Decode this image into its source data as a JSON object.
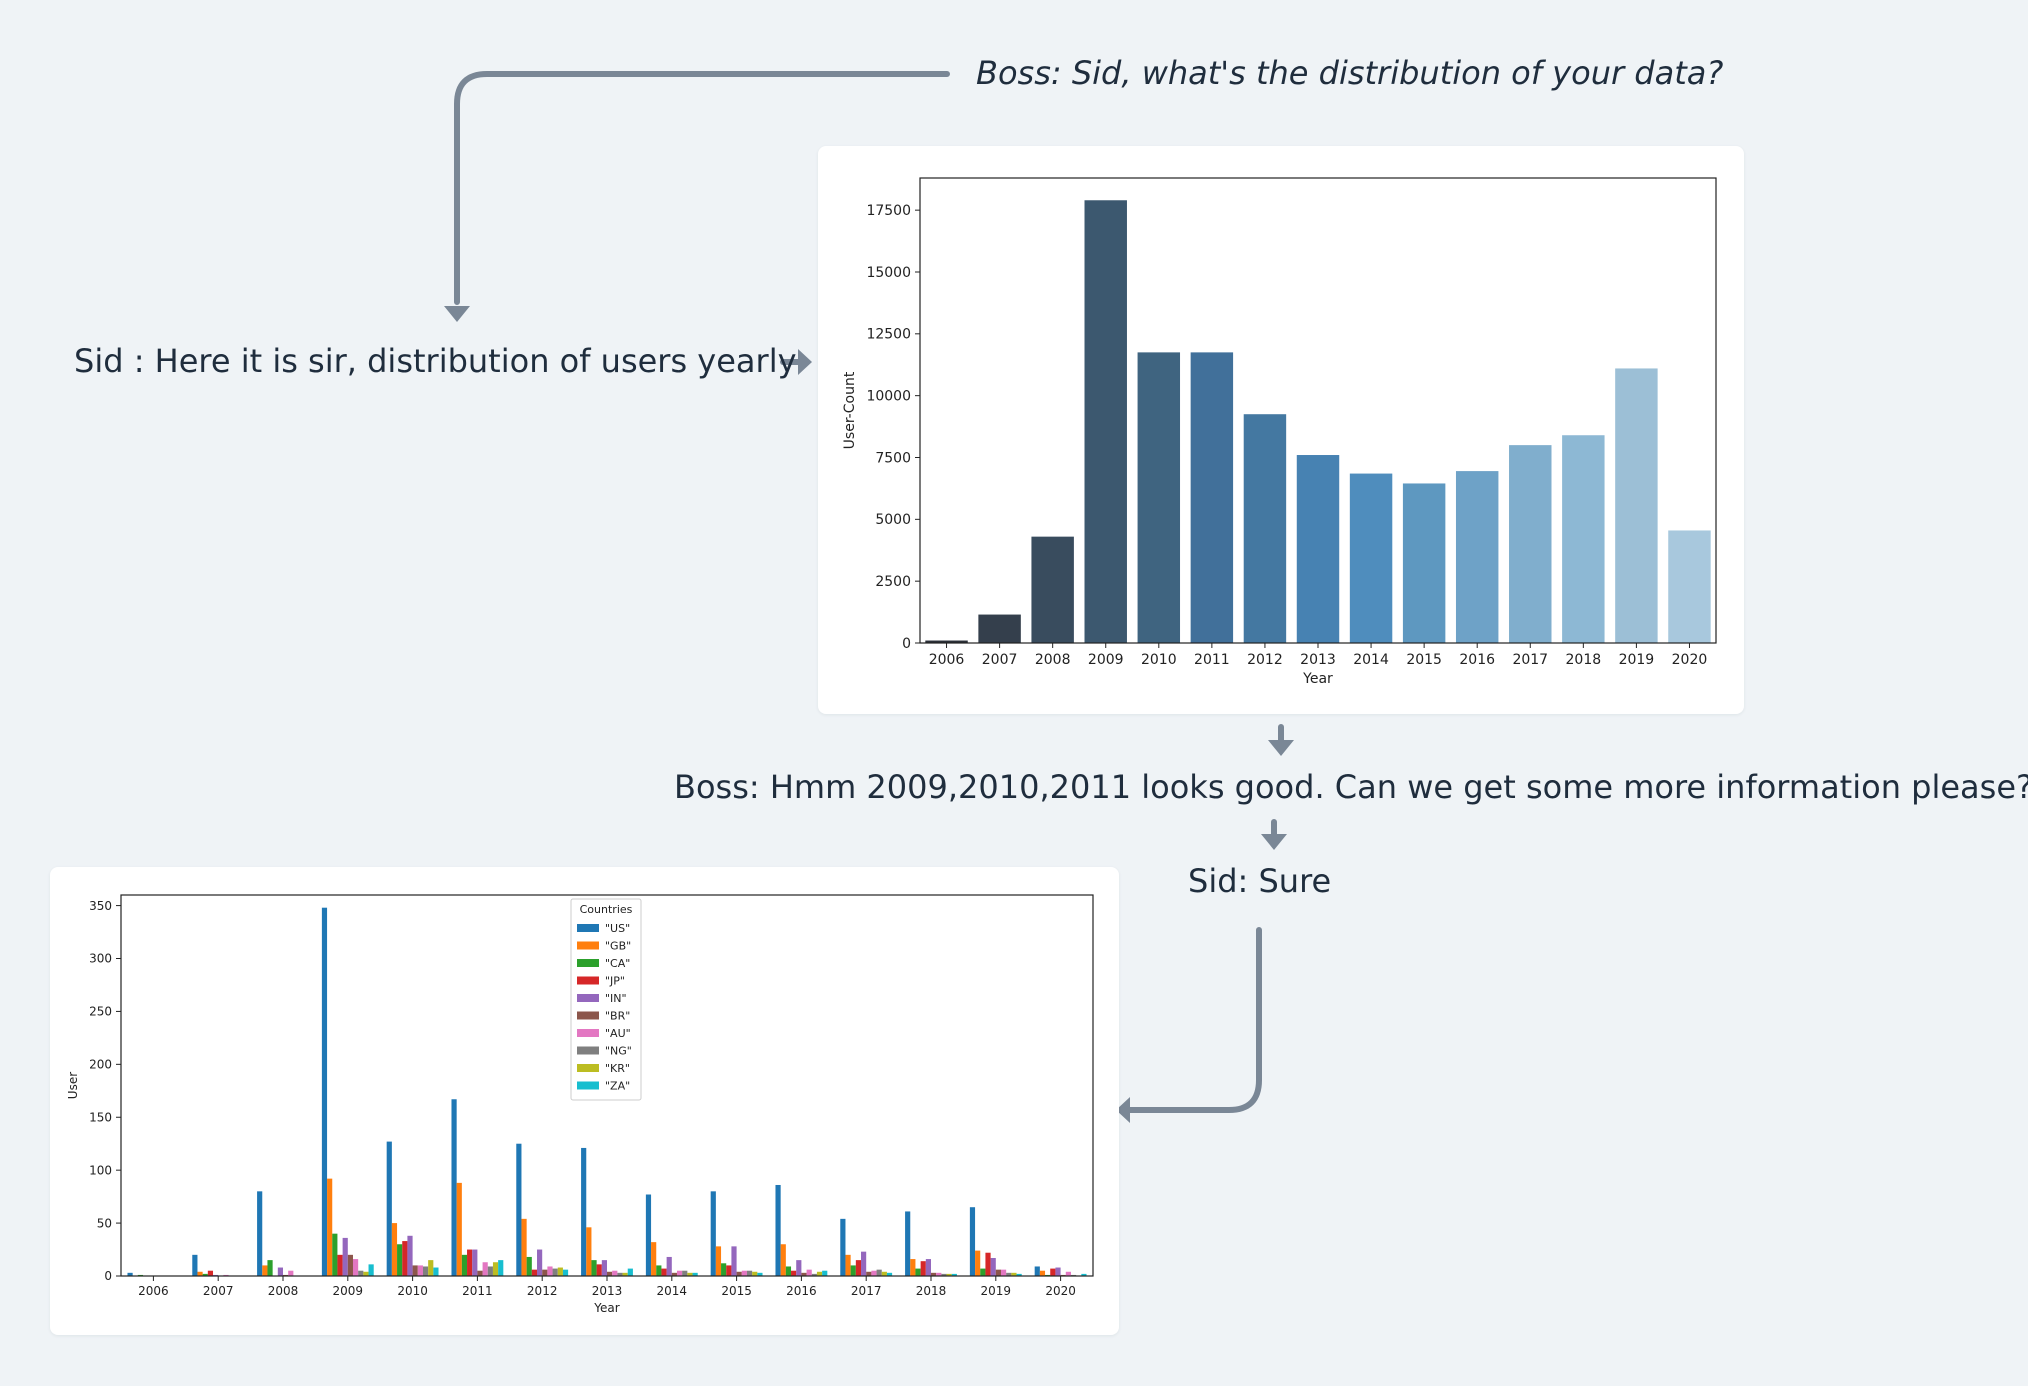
{
  "messages": {
    "boss_question": "Boss: Sid, what's the distribution of your data?",
    "sid_answer": "Sid : Here it is sir, distribution of users yearly",
    "boss_followup": "Boss: Hmm 2009,2010,2011 looks good. Can we get some more information please?",
    "sid_sure": "Sid: Sure"
  },
  "colors": {
    "background": "#eff3f6",
    "connector": "#7a8796",
    "text": "#1f2d3d"
  },
  "chart_data": [
    {
      "type": "bar",
      "xlabel": "Year",
      "ylabel": "User-Count",
      "ylim": [
        0,
        18800
      ],
      "yticks": [
        0,
        2500,
        5000,
        7500,
        10000,
        12500,
        15000,
        17500
      ],
      "categories": [
        "2006",
        "2007",
        "2008",
        "2009",
        "2010",
        "2011",
        "2012",
        "2013",
        "2014",
        "2015",
        "2016",
        "2017",
        "2018",
        "2019",
        "2020"
      ],
      "values": [
        100,
        1150,
        4300,
        17900,
        11750,
        11750,
        9250,
        7600,
        6850,
        6450,
        6950,
        8000,
        8400,
        11100,
        4550
      ],
      "colors": [
        "#2b3038",
        "#343f4c",
        "#394c5e",
        "#3c586f",
        "#3f6480",
        "#41709a",
        "#4478a1",
        "#4782b2",
        "#4f8dbd",
        "#5e98c0",
        "#6ea2c7",
        "#80aecd",
        "#8db8d4",
        "#9cbfd6",
        "#a8c8dd"
      ],
      "grid": false
    },
    {
      "type": "bar",
      "xlabel": "Year",
      "ylabel": "User",
      "ylim": [
        0,
        360
      ],
      "yticks": [
        0,
        50,
        100,
        150,
        200,
        250,
        300,
        350
      ],
      "legend": {
        "title": "Countries",
        "position": "top-center"
      },
      "grid": false,
      "categories": [
        "2006",
        "2007",
        "2008",
        "2009",
        "2010",
        "2011",
        "2012",
        "2013",
        "2014",
        "2015",
        "2016",
        "2017",
        "2018",
        "2019",
        "2020"
      ],
      "series": [
        {
          "name": "\"US\"",
          "color": "#1f77b4",
          "values": [
            3,
            20,
            80,
            348,
            127,
            167,
            125,
            121,
            77,
            80,
            86,
            54,
            61,
            65,
            9
          ]
        },
        {
          "name": "\"GB\"",
          "color": "#ff7f0e",
          "values": [
            0,
            4,
            10,
            92,
            50,
            88,
            54,
            46,
            32,
            28,
            30,
            20,
            16,
            24,
            5
          ]
        },
        {
          "name": "\"CA\"",
          "color": "#2ca02c",
          "values": [
            1,
            2,
            15,
            40,
            30,
            20,
            18,
            15,
            10,
            12,
            9,
            10,
            7,
            7,
            1
          ]
        },
        {
          "name": "\"JP\"",
          "color": "#d62728",
          "values": [
            0,
            5,
            0,
            20,
            33,
            25,
            6,
            11,
            7,
            10,
            5,
            15,
            14,
            22,
            7
          ]
        },
        {
          "name": "\"IN\"",
          "color": "#9467bd",
          "values": [
            0,
            1,
            8,
            36,
            38,
            25,
            25,
            15,
            18,
            28,
            15,
            23,
            16,
            17,
            8
          ]
        },
        {
          "name": "\"BR\"",
          "color": "#8c564b",
          "values": [
            0,
            0,
            1,
            20,
            10,
            5,
            6,
            4,
            3,
            4,
            3,
            4,
            3,
            6,
            1
          ]
        },
        {
          "name": "\"AU\"",
          "color": "#e377c2",
          "values": [
            0,
            1,
            5,
            16,
            10,
            13,
            9,
            5,
            5,
            5,
            6,
            5,
            3,
            6,
            4
          ]
        },
        {
          "name": "\"NG\"",
          "color": "#7f7f7f",
          "values": [
            0,
            0,
            0,
            5,
            9,
            9,
            7,
            3,
            5,
            5,
            2,
            6,
            2,
            3,
            1
          ]
        },
        {
          "name": "\"KR\"",
          "color": "#bcbd22",
          "values": [
            0,
            0,
            0,
            4,
            15,
            13,
            8,
            3,
            3,
            4,
            4,
            4,
            2,
            3,
            0
          ]
        },
        {
          "name": "\"ZA\"",
          "color": "#17becf",
          "values": [
            0,
            0,
            0,
            11,
            8,
            15,
            6,
            7,
            3,
            3,
            5,
            3,
            2,
            2,
            2
          ]
        }
      ]
    }
  ]
}
